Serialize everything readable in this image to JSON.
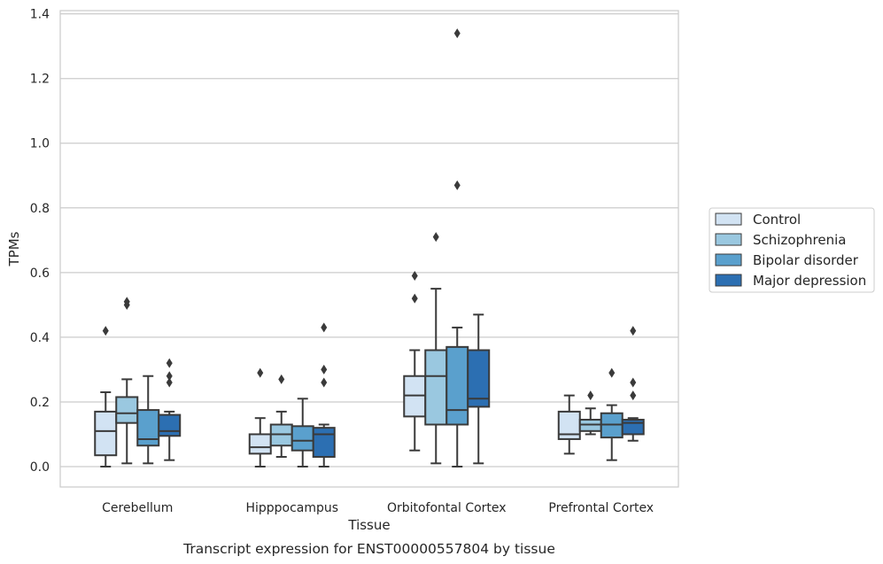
{
  "caption": "Transcript expression for ENST00000557804 by tissue",
  "chart_data": {
    "type": "box",
    "title": "",
    "xlabel": "Tissue",
    "ylabel": "TPMs",
    "ylim": [
      -0.063,
      1.41
    ],
    "yticks": [
      0.0,
      0.2,
      0.4,
      0.6,
      0.8,
      1.0,
      1.2,
      1.4
    ],
    "ytick_labels": [
      "0.0",
      "0.2",
      "0.4",
      "0.6",
      "0.8",
      "1.0",
      "1.2",
      "1.4"
    ],
    "grid": "horizontal",
    "legend": "right",
    "categories": [
      "Cerebellum",
      "Hipppocampus",
      "Orbitofontal Cortex",
      "Prefrontal Cortex"
    ],
    "series": [
      {
        "name": "Control",
        "color": "#d2e3f3",
        "boxes": [
          {
            "whislo": 0.0,
            "q1": 0.035,
            "med": 0.11,
            "q3": 0.17,
            "whishi": 0.23,
            "fliers": [
              0.42
            ]
          },
          {
            "whislo": 0.0,
            "q1": 0.04,
            "med": 0.06,
            "q3": 0.1,
            "whishi": 0.15,
            "fliers": [
              0.29
            ]
          },
          {
            "whislo": 0.05,
            "q1": 0.155,
            "med": 0.22,
            "q3": 0.28,
            "whishi": 0.36,
            "fliers": [
              0.52,
              0.59
            ]
          },
          {
            "whislo": 0.04,
            "q1": 0.085,
            "med": 0.1,
            "q3": 0.17,
            "whishi": 0.22,
            "fliers": []
          }
        ]
      },
      {
        "name": "Schizophrenia",
        "color": "#9ac8e0",
        "boxes": [
          {
            "whislo": 0.01,
            "q1": 0.135,
            "med": 0.165,
            "q3": 0.215,
            "whishi": 0.27,
            "fliers": [
              0.5,
              0.51
            ]
          },
          {
            "whislo": 0.03,
            "q1": 0.065,
            "med": 0.1,
            "q3": 0.13,
            "whishi": 0.17,
            "fliers": [
              0.27
            ]
          },
          {
            "whislo": 0.01,
            "q1": 0.13,
            "med": 0.28,
            "q3": 0.36,
            "whishi": 0.55,
            "fliers": [
              0.71
            ]
          },
          {
            "whislo": 0.1,
            "q1": 0.11,
            "med": 0.13,
            "q3": 0.145,
            "whishi": 0.18,
            "fliers": [
              0.22
            ]
          }
        ]
      },
      {
        "name": "Bipolar disorder",
        "color": "#5aa0cd",
        "boxes": [
          {
            "whislo": 0.01,
            "q1": 0.065,
            "med": 0.085,
            "q3": 0.175,
            "whishi": 0.28,
            "fliers": []
          },
          {
            "whislo": 0.0,
            "q1": 0.05,
            "med": 0.08,
            "q3": 0.125,
            "whishi": 0.21,
            "fliers": []
          },
          {
            "whislo": 0.0,
            "q1": 0.13,
            "med": 0.175,
            "q3": 0.37,
            "whishi": 0.43,
            "fliers": [
              0.87,
              1.34
            ]
          },
          {
            "whislo": 0.02,
            "q1": 0.09,
            "med": 0.13,
            "q3": 0.165,
            "whishi": 0.19,
            "fliers": [
              0.29
            ]
          }
        ]
      },
      {
        "name": "Major depression",
        "color": "#2c6fb2",
        "boxes": [
          {
            "whislo": 0.02,
            "q1": 0.095,
            "med": 0.11,
            "q3": 0.16,
            "whishi": 0.17,
            "fliers": [
              0.26,
              0.28,
              0.32
            ]
          },
          {
            "whislo": 0.0,
            "q1": 0.03,
            "med": 0.1,
            "q3": 0.12,
            "whishi": 0.13,
            "fliers": [
              0.26,
              0.3,
              0.43
            ]
          },
          {
            "whislo": 0.01,
            "q1": 0.185,
            "med": 0.21,
            "q3": 0.36,
            "whishi": 0.47,
            "fliers": []
          },
          {
            "whislo": 0.08,
            "q1": 0.1,
            "med": 0.135,
            "q3": 0.145,
            "whishi": 0.15,
            "fliers": [
              0.22,
              0.26,
              0.42
            ]
          }
        ]
      }
    ]
  }
}
